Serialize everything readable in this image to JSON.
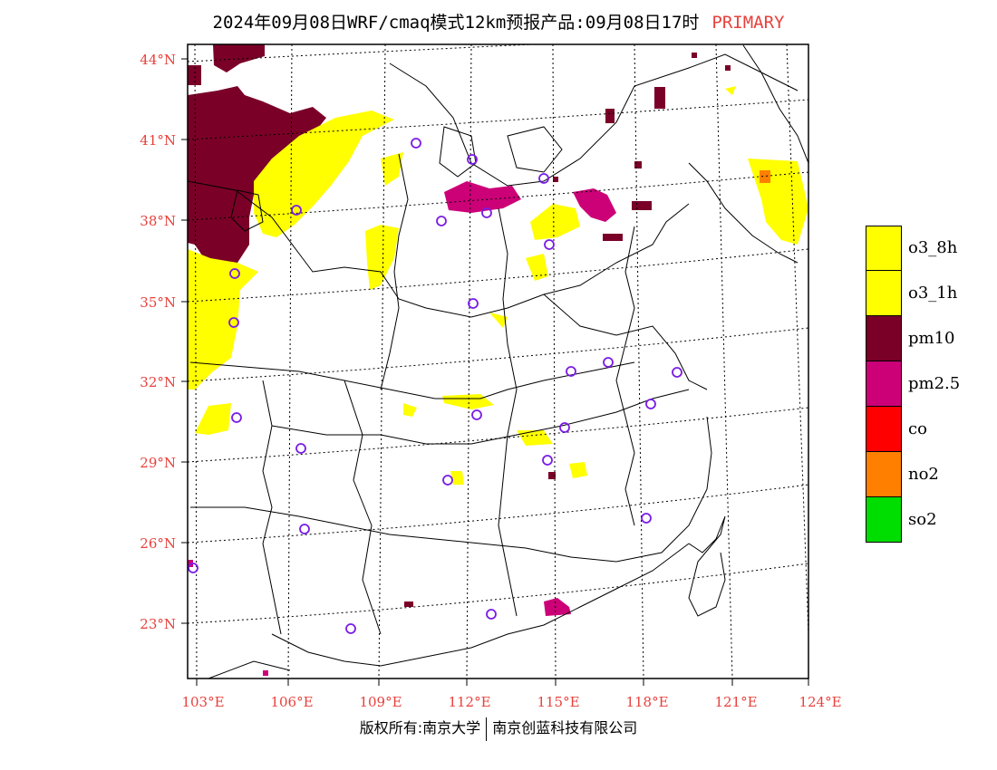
{
  "header": {
    "title": "2024年09月08日WRF/cmaq模式12km预报产品:09月08日17时",
    "mode": "PRIMARY",
    "mode_color": "#e8413c"
  },
  "map": {
    "lat_labels": [
      "44°N",
      "41°N",
      "38°N",
      "35°N",
      "32°N",
      "29°N",
      "26°N",
      "23°N"
    ],
    "lon_labels": [
      "103°E",
      "106°E",
      "109°E",
      "112°E",
      "115°E",
      "118°E",
      "121°E",
      "124°E"
    ],
    "label_color": "#e8413c"
  },
  "legend": {
    "items": [
      {
        "label": "o3_8h",
        "color": "#ffff00"
      },
      {
        "label": "o3_1h",
        "color": "#ffff00"
      },
      {
        "label": "pm10",
        "color": "#7a0028"
      },
      {
        "label": "pm2.5",
        "color": "#cc0077"
      },
      {
        "label": "co",
        "color": "#ff0000"
      },
      {
        "label": "no2",
        "color": "#ff8000"
      },
      {
        "label": "so2",
        "color": "#00dd00"
      }
    ]
  },
  "footer": {
    "left": "版权所有:南京大学",
    "right": "南京创蓝科技有限公司"
  }
}
